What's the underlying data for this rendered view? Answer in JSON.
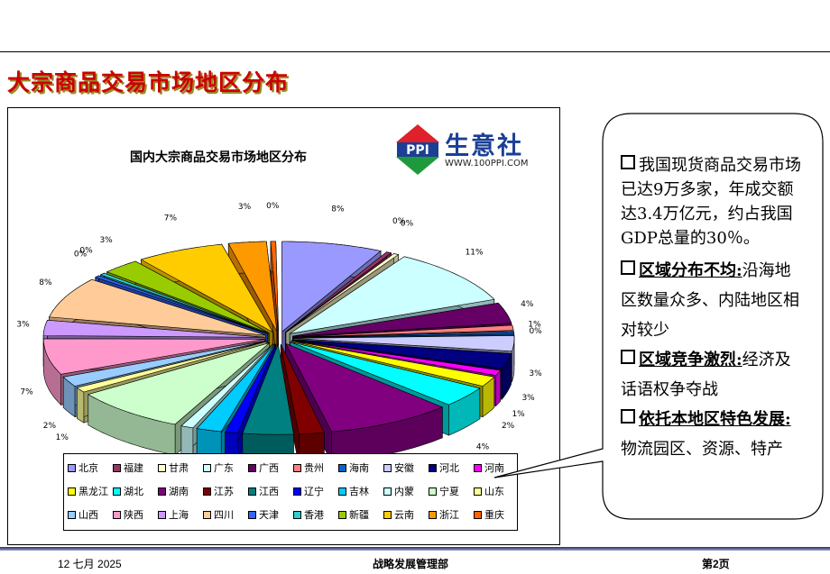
{
  "slide": {
    "title": "大宗商品交易市场地区分布"
  },
  "logo": {
    "mark": "PPI",
    "name": "生意社",
    "url": "WWW.100PPI.COM"
  },
  "chart_data": {
    "type": "pie",
    "title": "国内大宗商品交易市场地区分布",
    "style": "3d-exploded",
    "slices": [
      {
        "label": "北京",
        "value": 8,
        "display": "8%",
        "color": "#9999ff"
      },
      {
        "label": "福建",
        "value": 0,
        "display": "0%",
        "color": "#993366"
      },
      {
        "label": "甘肃",
        "value": 0,
        "display": "0%",
        "color": "#ffffcc"
      },
      {
        "label": "广东",
        "value": 11,
        "display": "11%",
        "color": "#ccffff"
      },
      {
        "label": "广西",
        "value": 4,
        "display": "4%",
        "color": "#660066"
      },
      {
        "label": "贵州",
        "value": 1,
        "display": "1%",
        "color": "#ff8080"
      },
      {
        "label": "海南",
        "value": 0,
        "display": "0%",
        "color": "#0066cc"
      },
      {
        "label": "安徽",
        "value": 3,
        "display": "3%",
        "color": "#ccccff"
      },
      {
        "label": "河北",
        "value": 3,
        "display": "3%",
        "color": "#000080"
      },
      {
        "label": "河南",
        "value": 1,
        "display": "1%",
        "color": "#ff00ff"
      },
      {
        "label": "黑龙江",
        "value": 2,
        "display": "2%",
        "color": "#ffff00"
      },
      {
        "label": "湖北",
        "value": 4,
        "display": "4%",
        "color": "#00ffff"
      },
      {
        "label": "湖南",
        "value": 10,
        "display": "10%",
        "color": "#800080"
      },
      {
        "label": "江苏",
        "value": 2,
        "display": "2%",
        "color": "#800000"
      },
      {
        "label": "江西",
        "value": 4,
        "display": "4%",
        "color": "#008080"
      },
      {
        "label": "辽宁",
        "value": 1,
        "display": "1%",
        "color": "#0000ff"
      },
      {
        "label": "吉林",
        "value": 2,
        "display": "2%",
        "color": "#00ccff"
      },
      {
        "label": "内蒙",
        "value": 1,
        "display": "1%",
        "color": "#ccffff"
      },
      {
        "label": "宁夏",
        "value": 9,
        "display": "9%",
        "color": "#ccffcc"
      },
      {
        "label": "山东",
        "value": 1,
        "display": "1%",
        "color": "#ffff99"
      },
      {
        "label": "山西",
        "value": 2,
        "display": "2%",
        "color": "#99ccff"
      },
      {
        "label": "陕西",
        "value": 7,
        "display": "7%",
        "color": "#ff99cc"
      },
      {
        "label": "上海",
        "value": 3,
        "display": "3%",
        "color": "#cc99ff"
      },
      {
        "label": "四川",
        "value": 8,
        "display": "8%",
        "color": "#ffcc99"
      },
      {
        "label": "天津",
        "value": 0,
        "display": "0%",
        "color": "#3366ff"
      },
      {
        "label": "香港",
        "value": 0,
        "display": "0%",
        "color": "#33cccc"
      },
      {
        "label": "新疆",
        "value": 3,
        "display": "3%",
        "color": "#99cc00"
      },
      {
        "label": "云南",
        "value": 7,
        "display": "7%",
        "color": "#ffcc00"
      },
      {
        "label": "浙江",
        "value": 3,
        "display": "3%",
        "color": "#ff9900"
      },
      {
        "label": "重庆",
        "value": 0,
        "display": "0%",
        "color": "#ff6600"
      }
    ]
  },
  "callout": {
    "points": [
      {
        "heading": "",
        "text": "我国现货商品交易市场已达9万多家，年成交额达3.4万亿元，约占我国GDP总量的30％。"
      },
      {
        "heading": "区域分布不均:",
        "text": "沿海地区数量众多、内陆地区相对较少"
      },
      {
        "heading": "区域竞争激烈:",
        "text": "经济及话语权争夺战"
      },
      {
        "heading": "依托本地区特色发展:",
        "text": "物流园区、资源、特产"
      }
    ]
  },
  "footer": {
    "date": "12 七月 2025",
    "department": "战略发展管理部",
    "page": "第2页"
  }
}
